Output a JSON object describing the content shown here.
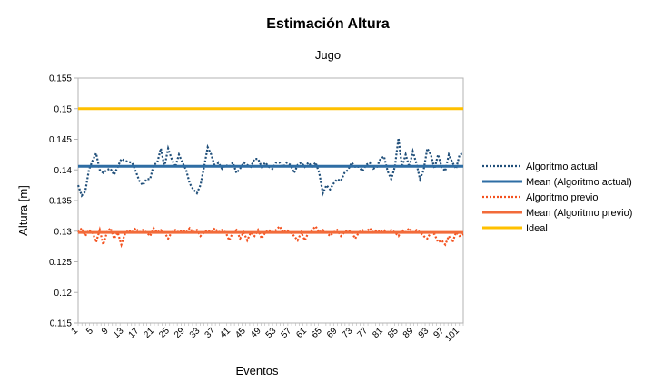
{
  "chart_data": {
    "type": "line",
    "title": "Estimación Altura",
    "subtitle": "Jugo",
    "xlabel": "Eventos",
    "ylabel": "Altura [m]",
    "ylim": [
      0.115,
      0.155
    ],
    "y_ticks": [
      "0.115",
      "0.12",
      "0.125",
      "0.13",
      "0.135",
      "0.14",
      "0.145",
      "0.15",
      "0.155"
    ],
    "x_ticks": [
      "1",
      "5",
      "9",
      "13",
      "17",
      "21",
      "25",
      "29",
      "33",
      "37",
      "41",
      "45",
      "49",
      "53",
      "57",
      "61",
      "65",
      "69",
      "73",
      "77",
      "81",
      "85",
      "89",
      "93",
      "97",
      "101"
    ],
    "x_range": [
      1,
      102
    ],
    "grid": false,
    "legend_position": "right",
    "series": [
      {
        "name": "Algoritmo actual",
        "color": "#1f4e79",
        "style": "dotted",
        "values": [
          0.1375,
          0.1358,
          0.1365,
          0.14,
          0.1415,
          0.1427,
          0.14,
          0.1395,
          0.14,
          0.1402,
          0.1392,
          0.1405,
          0.1418,
          0.1415,
          0.1413,
          0.1412,
          0.1398,
          0.1382,
          0.1375,
          0.1385,
          0.1385,
          0.1408,
          0.1412,
          0.1435,
          0.1405,
          0.1435,
          0.1418,
          0.1405,
          0.1425,
          0.1412,
          0.14,
          0.1378,
          0.1368,
          0.1362,
          0.1375,
          0.1405,
          0.1437,
          0.1425,
          0.1405,
          0.1412,
          0.1402,
          0.1408,
          0.1405,
          0.1412,
          0.1395,
          0.1402,
          0.1412,
          0.1408,
          0.1405,
          0.1418,
          0.1418,
          0.1405,
          0.1412,
          0.1405,
          0.1402,
          0.1412,
          0.1412,
          0.1405,
          0.1412,
          0.1408,
          0.1395,
          0.1408,
          0.1412,
          0.1405,
          0.1412,
          0.1405,
          0.1412,
          0.1395,
          0.1362,
          0.1375,
          0.1368,
          0.1378,
          0.1385,
          0.1382,
          0.1395,
          0.14,
          0.1412,
          0.1405,
          0.1405,
          0.1398,
          0.1408,
          0.1412,
          0.1402,
          0.1405,
          0.1418,
          0.1422,
          0.1398,
          0.1385,
          0.1405,
          0.1452,
          0.1405,
          0.1425,
          0.1405,
          0.143,
          0.141,
          0.1385,
          0.14,
          0.1435,
          0.1425,
          0.1402,
          0.1425,
          0.1405,
          0.1398,
          0.1425,
          0.1412,
          0.1402,
          0.1425,
          0.1427
        ]
      },
      {
        "name": "Mean (Algoritmo actual)",
        "color": "#2e6da4",
        "style": "solid",
        "values": [
          0.1406,
          0.1406
        ]
      },
      {
        "name": "Algoritmo previo",
        "color": "#f4511e",
        "style": "dotted",
        "values": [
          0.1298,
          0.1305,
          0.1292,
          0.1302,
          0.1298,
          0.1282,
          0.1302,
          0.1278,
          0.1298,
          0.1305,
          0.1288,
          0.1298,
          0.1278,
          0.1295,
          0.1302,
          0.1298,
          0.1305,
          0.1298,
          0.1302,
          0.1298,
          0.1292,
          0.1305,
          0.1298,
          0.1302,
          0.1298,
          0.1288,
          0.1298,
          0.1302,
          0.1298,
          0.1302,
          0.1298,
          0.1305,
          0.1298,
          0.1302,
          0.1292,
          0.1298,
          0.1302,
          0.1298,
          0.1305,
          0.1298,
          0.1302,
          0.1298,
          0.1285,
          0.1298,
          0.1302,
          0.1288,
          0.1298,
          0.1285,
          0.1298,
          0.1292,
          0.1302,
          0.1288,
          0.1298,
          0.1302,
          0.1298,
          0.1302,
          0.1308,
          0.1298,
          0.1302,
          0.1298,
          0.1292,
          0.1285,
          0.1298,
          0.1285,
          0.1298,
          0.1302,
          0.1308,
          0.1298,
          0.1302,
          0.1298,
          0.1292,
          0.1298,
          0.1302,
          0.1292,
          0.1298,
          0.1302,
          0.1298,
          0.1288,
          0.1298,
          0.1302,
          0.1298,
          0.1305,
          0.1298,
          0.1302,
          0.1298,
          0.1302,
          0.1298,
          0.1302,
          0.1298,
          0.1292,
          0.1302,
          0.1298,
          0.1305,
          0.1298,
          0.1302,
          0.1298,
          0.1292,
          0.1288,
          0.1298,
          0.1295,
          0.1282,
          0.1285,
          0.1278,
          0.1292,
          0.1282,
          0.1298,
          0.1292,
          0.1295
        ]
      },
      {
        "name": "Mean (Algoritmo previo)",
        "color": "#f26b3a",
        "style": "solid",
        "values": [
          0.1298,
          0.1298
        ]
      },
      {
        "name": "Ideal",
        "color": "#ffc000",
        "style": "solid",
        "values": [
          0.15,
          0.15
        ]
      }
    ]
  }
}
